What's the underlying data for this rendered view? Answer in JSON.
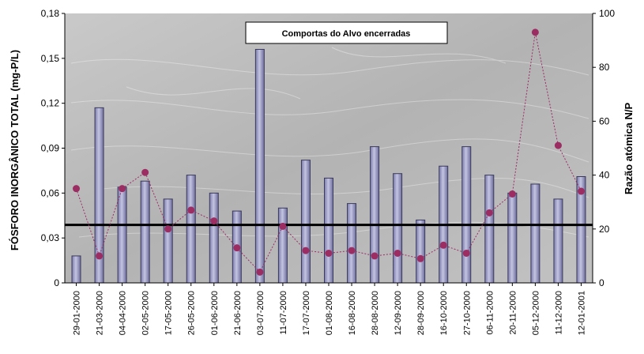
{
  "chart_data": {
    "type": "bar",
    "title": "",
    "annotation": "Comportas do Alvo encerradas",
    "categories": [
      "29-01-2000",
      "21-03-2000",
      "04-04-2000",
      "02-05-2000",
      "17-05-2000",
      "26-05-2000",
      "01-06-2000",
      "21-06-2000",
      "03-07-2000",
      "11-07-2000",
      "17-07-2000",
      "01-08-2000",
      "16-08-2000",
      "28-08-2000",
      "12-09-2000",
      "28-09-2000",
      "16-10-2000",
      "27-10-2000",
      "06-11-2000",
      "20-11-2000",
      "05-12-2000",
      "11-12-2000",
      "12-01-2001"
    ],
    "bars": {
      "axis": "left",
      "values": [
        0.018,
        0.117,
        0.064,
        0.068,
        0.056,
        0.072,
        0.06,
        0.048,
        0.156,
        0.05,
        0.082,
        0.07,
        0.053,
        0.091,
        0.073,
        0.042,
        0.078,
        0.091,
        0.072,
        0.06,
        0.066,
        0.056,
        0.071
      ]
    },
    "points": {
      "axis": "right",
      "values": [
        35,
        10,
        35,
        41,
        20,
        27,
        23,
        13,
        4,
        21,
        12,
        11,
        12,
        10,
        11,
        9,
        14,
        11,
        26,
        33,
        93,
        51,
        34
      ]
    },
    "reference_line": {
      "axis": "right",
      "value": 21.5
    },
    "yleft": {
      "label": "FÓSFORO INORGÂNICO TOTAL (mg-P/L)",
      "ylim": [
        0,
        0.18
      ],
      "ticks": [
        "0",
        "0,03",
        "0,06",
        "0,09",
        "0,12",
        "0,15",
        "0,18"
      ]
    },
    "yright": {
      "label": "Razão atómica N/P",
      "ylim": [
        0,
        100
      ],
      "ticks": [
        "0",
        "20",
        "40",
        "60",
        "80",
        "100"
      ]
    },
    "colors": {
      "bar_fill": "#9a9ac4",
      "bar_stroke": "#3a3a5e",
      "point": "#9b2d63",
      "plot_bg": "#b9b9b9",
      "reference": "#000000"
    }
  }
}
